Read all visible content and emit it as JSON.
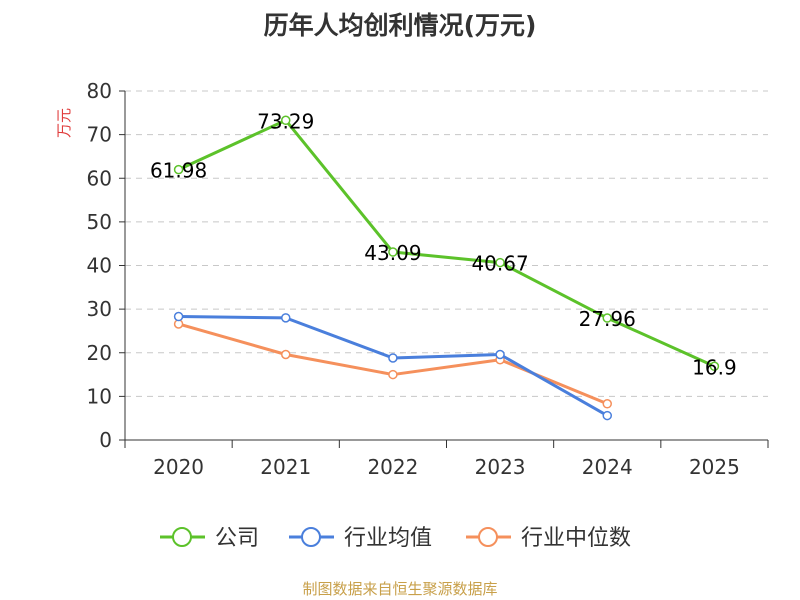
{
  "chart_data": {
    "type": "line",
    "title": "历年人均创利情况(万元)",
    "ylabel": "万元",
    "xlabel": "",
    "categories": [
      "2020",
      "2021",
      "2022",
      "2023",
      "2024",
      "2025"
    ],
    "ylim": [
      0,
      80
    ],
    "yticks": [
      0,
      10,
      20,
      30,
      40,
      50,
      60,
      70,
      80
    ],
    "grid": "horizontal-dashed",
    "legend_position": "bottom",
    "series": [
      {
        "name": "公司",
        "color": "#5cc22a",
        "values": [
          61.98,
          73.29,
          43.09,
          40.67,
          27.96,
          16.9
        ],
        "labels": [
          "61.98",
          "73.29",
          "43.09",
          "40.67",
          "27.96",
          "16.9"
        ],
        "show_labels": true
      },
      {
        "name": "行业均值",
        "color": "#4a7fdc",
        "values": [
          28.3,
          28.0,
          18.8,
          19.6,
          5.6,
          null
        ],
        "show_labels": false
      },
      {
        "name": "行业中位数",
        "color": "#f5905c",
        "values": [
          26.6,
          19.6,
          15.0,
          18.4,
          8.3,
          null
        ],
        "show_labels": false
      }
    ]
  },
  "source_note": "制图数据来自恒生聚源数据库"
}
